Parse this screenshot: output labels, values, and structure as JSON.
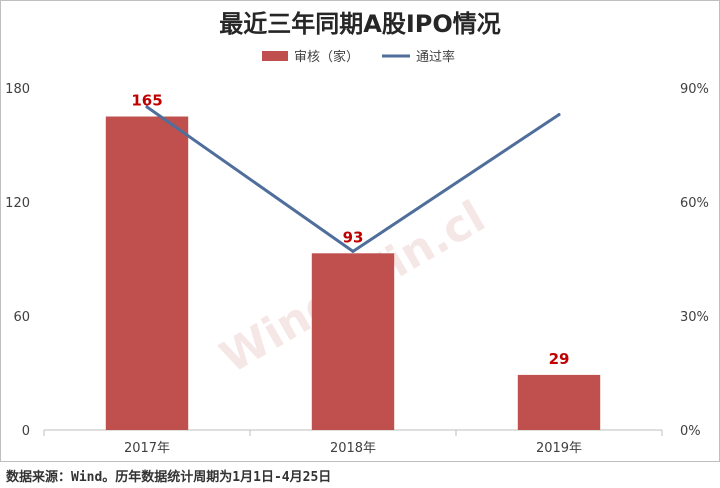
{
  "chart_data": {
    "type": "bar",
    "title": "最近三年同期A股IPO情况",
    "categories": [
      "2017年",
      "2018年",
      "2019年"
    ],
    "series": [
      {
        "name": "审核（家）",
        "kind": "bar",
        "axis": "left",
        "color": "#c0504d",
        "values": [
          165,
          93,
          29
        ],
        "labels": [
          "165",
          "93",
          "29"
        ]
      },
      {
        "name": "通过率",
        "kind": "line",
        "axis": "right",
        "color": "#4f6e9b",
        "values": [
          0.85,
          0.47,
          0.83
        ]
      }
    ],
    "y_left": {
      "min": 0,
      "max": 180,
      "ticks": [
        0,
        60,
        120,
        180
      ],
      "tick_labels": [
        "0",
        "60",
        "120",
        "180"
      ]
    },
    "y_right": {
      "min": 0,
      "max": 0.9,
      "ticks": [
        0,
        0.3,
        0.6,
        0.9
      ],
      "tick_labels": [
        "0%",
        "30%",
        "60%",
        "90%"
      ]
    },
    "grid": false,
    "legend_position": "top-center",
    "data_label_color": "#c00000",
    "watermark": "Wind.Win.cl"
  },
  "source_note": "数据来源：Wind。历年数据统计周期为1月1日-4月25日"
}
